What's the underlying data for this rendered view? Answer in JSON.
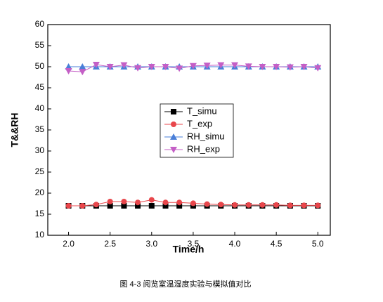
{
  "chart_data": {
    "type": "line",
    "x_label": "Time/h",
    "y_label": "T&&RH",
    "caption": "图 4-3 阅览室温湿度实验与模拟值对比",
    "x": [
      2.0,
      2.167,
      2.333,
      2.5,
      2.667,
      2.833,
      3.0,
      3.167,
      3.333,
      3.5,
      3.667,
      3.833,
      4.0,
      4.167,
      4.333,
      4.5,
      4.667,
      4.833,
      5.0
    ],
    "series": [
      {
        "name": "T_simu",
        "color": "#000000",
        "marker": "square",
        "values": [
          17,
          17,
          17,
          17,
          17,
          17,
          17,
          17,
          17,
          17,
          17,
          17,
          17,
          17,
          17,
          17,
          17,
          17,
          17
        ]
      },
      {
        "name": "T_exp",
        "color": "#e8464b",
        "marker": "circle",
        "values": [
          17,
          17,
          17.3,
          18,
          18,
          17.8,
          18.4,
          17.8,
          17.8,
          17.6,
          17.4,
          17.3,
          17.2,
          17.2,
          17.2,
          17.2,
          17.1,
          17.1,
          17.1
        ]
      },
      {
        "name": "RH_simu",
        "color": "#4a7fd8",
        "marker": "triangle-up",
        "values": [
          50,
          50,
          50,
          50,
          50,
          50,
          50,
          50,
          50,
          50,
          50,
          50,
          50,
          50,
          50,
          50,
          50,
          50,
          50
        ]
      },
      {
        "name": "RH_exp",
        "color": "#c45fc6",
        "marker": "triangle-down",
        "values": [
          49,
          48.8,
          50.5,
          50,
          50.4,
          49.7,
          50,
          50,
          49.6,
          50.2,
          50.3,
          50.4,
          50.4,
          50.1,
          50,
          50,
          49.9,
          50,
          49.7
        ]
      }
    ],
    "xlim": [
      1.75,
      5.15
    ],
    "ylim": [
      10,
      60
    ],
    "xticks": [
      {
        "value": 2,
        "label": "2.0"
      },
      {
        "value": 2.5,
        "label": "2.5"
      },
      {
        "value": 3,
        "label": "3.0"
      },
      {
        "value": 3.5,
        "label": "3.5"
      },
      {
        "value": 4,
        "label": "4.0"
      },
      {
        "value": 4.5,
        "label": "4.5"
      },
      {
        "value": 5,
        "label": "5.0"
      }
    ],
    "yticks": [
      10,
      15,
      20,
      25,
      30,
      35,
      40,
      45,
      50,
      55,
      60
    ]
  }
}
